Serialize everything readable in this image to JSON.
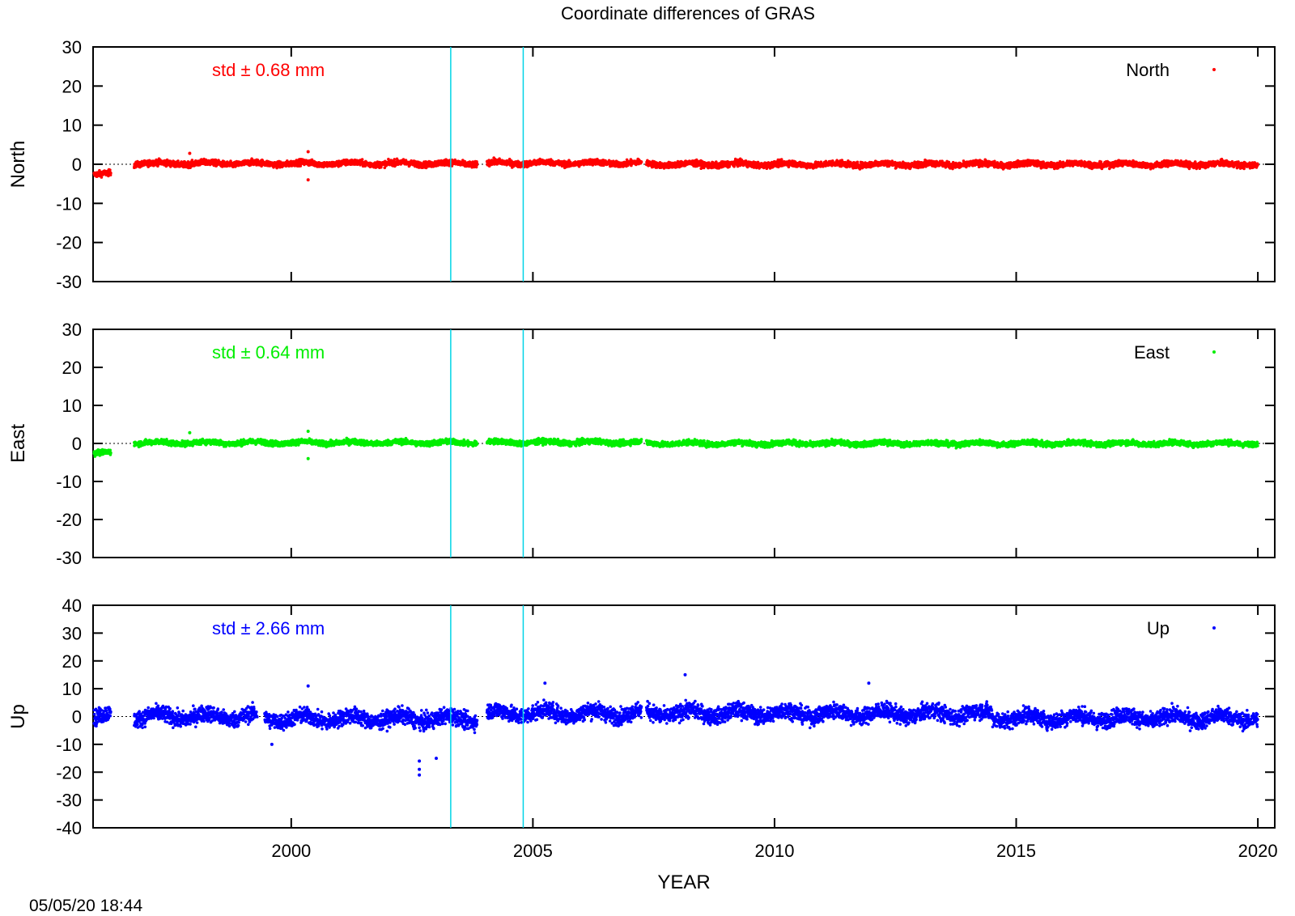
{
  "title": "Coordinate differences of GRAS",
  "timestamp": "05/05/20 18:44",
  "colors": {
    "north": "#ff0000",
    "east": "#00ee00",
    "up": "#0000ff",
    "event_lines": "#00d4e6",
    "axes": "#000000"
  },
  "chart_data": {
    "type": "scatter",
    "title": "Coordinate differences of GRAS",
    "xlabel": "YEAR",
    "xlim": [
      1995.9,
      2020.35
    ],
    "xticks": [
      2000,
      2005,
      2010,
      2015,
      2020
    ],
    "event_lines_x": [
      2003.3,
      2004.8
    ],
    "zero_line": true,
    "grid": false,
    "legend_placement": "top-right",
    "panels": [
      {
        "name": "North",
        "ylabel": "North",
        "legend": "North",
        "std_label": "std ± 0.68 mm",
        "color": "#ff0000",
        "ylim": [
          -30,
          30
        ],
        "yticks": [
          30,
          20,
          10,
          0,
          -10,
          -20,
          -30
        ],
        "std_mm": 0.68,
        "segments": [
          [
            1995.92,
            1996.27,
            -2.5
          ],
          [
            1996.75,
            2003.85,
            0.2
          ],
          [
            2004.05,
            2007.25,
            0.3
          ],
          [
            2007.35,
            2020.0,
            0.0
          ]
        ],
        "outliers": [
          {
            "x": 2000.35,
            "y": -4.0
          },
          {
            "x": 2000.35,
            "y": 3.2
          },
          {
            "x": 1997.9,
            "y": 2.8
          }
        ]
      },
      {
        "name": "East",
        "ylabel": "East",
        "legend": "East",
        "std_label": "std ± 0.64 mm",
        "color": "#00ee00",
        "ylim": [
          -30,
          30
        ],
        "yticks": [
          30,
          20,
          10,
          0,
          -10,
          -20,
          -30
        ],
        "std_mm": 0.64,
        "segments": [
          [
            1995.92,
            1996.27,
            -2.5
          ],
          [
            1996.75,
            2003.85,
            0.2
          ],
          [
            2004.05,
            2007.25,
            0.3
          ],
          [
            2007.35,
            2020.0,
            0.0
          ]
        ],
        "outliers": [
          {
            "x": 2000.35,
            "y": -4.0
          },
          {
            "x": 2000.35,
            "y": 3.2
          },
          {
            "x": 1997.9,
            "y": 2.8
          }
        ]
      },
      {
        "name": "Up",
        "ylabel": "Up",
        "legend": "Up",
        "std_label": "std ± 2.66 mm",
        "color": "#0000ff",
        "ylim": [
          -40,
          40
        ],
        "yticks": [
          40,
          30,
          20,
          10,
          0,
          -10,
          -20,
          -30,
          -40
        ],
        "std_mm": 2.66,
        "segments": [
          [
            1995.92,
            1996.27,
            0.0
          ],
          [
            1996.75,
            1999.3,
            0.0
          ],
          [
            1999.45,
            2003.85,
            -0.8
          ],
          [
            2004.05,
            2007.25,
            1.2
          ],
          [
            2007.35,
            2010.5,
            1.2
          ],
          [
            2010.5,
            2014.5,
            1.0
          ],
          [
            2014.5,
            2020.0,
            -0.5
          ]
        ],
        "outliers": [
          {
            "x": 2000.35,
            "y": 11.0
          },
          {
            "x": 2002.65,
            "y": -21.0
          },
          {
            "x": 2002.65,
            "y": -19.0
          },
          {
            "x": 2002.65,
            "y": -16.0
          },
          {
            "x": 2003.0,
            "y": -15.0
          },
          {
            "x": 2005.25,
            "y": 12.0
          },
          {
            "x": 2008.15,
            "y": 15.0
          },
          {
            "x": 2011.95,
            "y": 12.0
          },
          {
            "x": 1999.6,
            "y": -10.0
          }
        ]
      }
    ]
  }
}
